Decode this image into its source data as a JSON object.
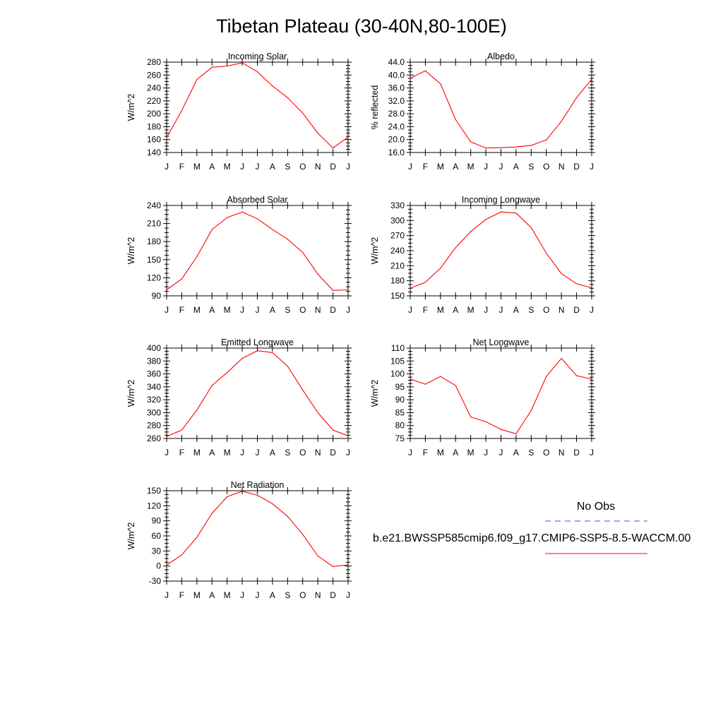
{
  "page_title": "Tibetan Plateau (30-40N,80-100E)",
  "legend": {
    "obs_label": "No Obs",
    "obs_color": "#4a4ae6",
    "model_label": "b.e21.BWSSP585cmip6.f09_g17.CMIP6-SSP5-8.5-WACCM.00",
    "model_color": "#ff0000"
  },
  "chart_data": [
    {
      "type": "line",
      "title": "Incoming Solar",
      "ylabel": "W/m^2",
      "ylim": [
        140,
        280
      ],
      "yticks": [
        "140",
        "160",
        "180",
        "200",
        "220",
        "240",
        "260",
        "280"
      ],
      "categories": [
        "J",
        "F",
        "M",
        "A",
        "M",
        "J",
        "J",
        "A",
        "S",
        "O",
        "N",
        "D",
        "J"
      ],
      "series": [
        {
          "color": "#ff0000",
          "values": [
            163,
            205,
            253,
            272,
            274,
            279,
            265,
            243,
            225,
            201,
            170,
            147,
            164
          ]
        }
      ]
    },
    {
      "type": "line",
      "title": "Albedo",
      "ylabel": "% reflected",
      "ylim": [
        16,
        44
      ],
      "yticks": [
        "16.0",
        "20.0",
        "24.0",
        "28.0",
        "32.0",
        "36.0",
        "40.0",
        "44.0"
      ],
      "categories": [
        "J",
        "F",
        "M",
        "A",
        "M",
        "J",
        "J",
        "A",
        "S",
        "O",
        "N",
        "D",
        "J"
      ],
      "series": [
        {
          "color": "#ff0000",
          "values": [
            39.0,
            41.3,
            37.3,
            26.2,
            19.3,
            17.4,
            17.5,
            17.7,
            18.2,
            19.9,
            25.7,
            33.0,
            38.7
          ]
        }
      ]
    },
    {
      "type": "line",
      "title": "Absorbed Solar",
      "ylabel": "W/m^2",
      "ylim": [
        90,
        240
      ],
      "yticks": [
        "90",
        "120",
        "150",
        "180",
        "210",
        "240"
      ],
      "categories": [
        "J",
        "F",
        "M",
        "A",
        "M",
        "J",
        "J",
        "A",
        "S",
        "O",
        "N",
        "D",
        "J"
      ],
      "series": [
        {
          "color": "#ff0000",
          "values": [
            100,
            118,
            155,
            200,
            220,
            229,
            218,
            200,
            184,
            162,
            126,
            99,
            100
          ]
        }
      ]
    },
    {
      "type": "line",
      "title": "Incoming Longwave",
      "ylabel": "W/m^2",
      "ylim": [
        150,
        330
      ],
      "yticks": [
        "150",
        "180",
        "210",
        "240",
        "270",
        "300",
        "330"
      ],
      "categories": [
        "J",
        "F",
        "M",
        "A",
        "M",
        "J",
        "J",
        "A",
        "S",
        "O",
        "N",
        "D",
        "J"
      ],
      "series": [
        {
          "color": "#ff0000",
          "values": [
            165,
            177,
            205,
            246,
            278,
            302,
            317,
            315,
            286,
            235,
            194,
            174,
            166
          ]
        }
      ]
    },
    {
      "type": "line",
      "title": "Emitted Longwave",
      "ylabel": "W/m^2",
      "ylim": [
        260,
        400
      ],
      "yticks": [
        "260",
        "280",
        "300",
        "320",
        "340",
        "360",
        "380",
        "400"
      ],
      "categories": [
        "J",
        "F",
        "M",
        "A",
        "M",
        "J",
        "J",
        "A",
        "S",
        "O",
        "N",
        "D",
        "J"
      ],
      "series": [
        {
          "color": "#ff0000",
          "values": [
            263,
            273,
            304,
            342,
            362,
            384,
            396,
            393,
            372,
            335,
            300,
            273,
            264
          ]
        }
      ]
    },
    {
      "type": "line",
      "title": "Net Longwave",
      "ylabel": "W/m^2",
      "ylim": [
        75,
        110
      ],
      "yticks": [
        "75",
        "80",
        "85",
        "90",
        "95",
        "100",
        "105",
        "110"
      ],
      "categories": [
        "J",
        "F",
        "M",
        "A",
        "M",
        "J",
        "J",
        "A",
        "S",
        "O",
        "N",
        "D",
        "J"
      ],
      "series": [
        {
          "color": "#ff0000",
          "values": [
            98.0,
            96.0,
            99.0,
            95.5,
            83.3,
            81.5,
            78.5,
            76.8,
            85.8,
            99.0,
            106.0,
            99.3,
            98.0
          ]
        }
      ]
    },
    {
      "type": "line",
      "title": "Net Radiation",
      "ylabel": "W/m^2",
      "ylim": [
        -30,
        150
      ],
      "yticks": [
        "-30",
        "0",
        "30",
        "60",
        "90",
        "120",
        "150"
      ],
      "categories": [
        "J",
        "F",
        "M",
        "A",
        "M",
        "J",
        "J",
        "A",
        "S",
        "O",
        "N",
        "D",
        "J"
      ],
      "series": [
        {
          "color": "#ff0000",
          "values": [
            2,
            22,
            57,
            105,
            138,
            149,
            141,
            124,
            99,
            63,
            20,
            -1,
            2
          ]
        }
      ]
    }
  ]
}
